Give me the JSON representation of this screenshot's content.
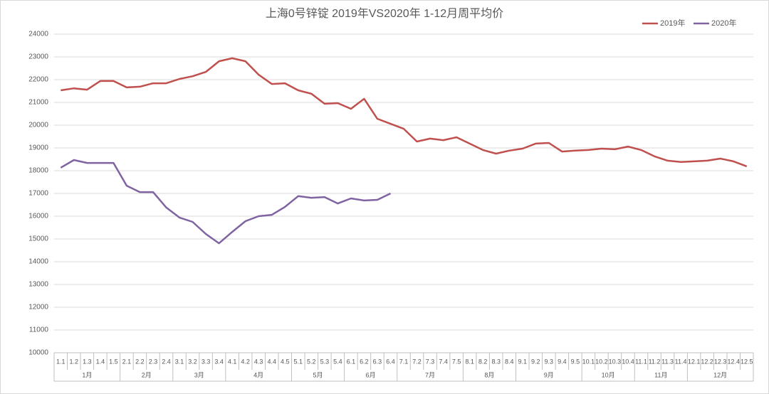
{
  "chart_data": {
    "type": "line",
    "title": "上海0号锌锭  2019年VS2020年  1-12月周平均价",
    "groups": [
      {
        "label": "1月",
        "categories": [
          "1.1",
          "1.2",
          "1.3",
          "1.4",
          "1.5"
        ]
      },
      {
        "label": "2月",
        "categories": [
          "2.1",
          "2.2",
          "2.3",
          "2.4"
        ]
      },
      {
        "label": "3月",
        "categories": [
          "3.1",
          "3.2",
          "3.3",
          "3.4"
        ]
      },
      {
        "label": "4月",
        "categories": [
          "4.1",
          "4.2",
          "4.3",
          "4.4",
          "4.5"
        ]
      },
      {
        "label": "5月",
        "categories": [
          "5.1",
          "5.2",
          "5.3",
          "5.4"
        ]
      },
      {
        "label": "6月",
        "categories": [
          "6.1",
          "6.2",
          "6.3",
          "6.4"
        ]
      },
      {
        "label": "7月",
        "categories": [
          "7.1",
          "7.2",
          "7.3",
          "7.4",
          "7.5"
        ]
      },
      {
        "label": "8月",
        "categories": [
          "8.1",
          "8.2",
          "8.3",
          "8.4"
        ]
      },
      {
        "label": "9月",
        "categories": [
          "9.1",
          "9.2",
          "9.3",
          "9.4",
          "9.5"
        ]
      },
      {
        "label": "10月",
        "categories": [
          "10.1",
          "10.2",
          "10.3",
          "10.4"
        ]
      },
      {
        "label": "11月",
        "categories": [
          "11.1",
          "11.2",
          "11.3",
          "11.4"
        ]
      },
      {
        "label": "12月",
        "categories": [
          "12.1",
          "12.2",
          "12.3",
          "12.4",
          "12.5"
        ]
      }
    ],
    "series": [
      {
        "name": "2019年",
        "color": "#c0504d",
        "values": [
          21530,
          21620,
          21560,
          21940,
          21940,
          21660,
          21690,
          21840,
          21840,
          22030,
          22150,
          22340,
          22810,
          22940,
          22810,
          22220,
          21810,
          21840,
          21530,
          21380,
          20940,
          20970,
          20720,
          21160,
          20280,
          20060,
          19840,
          19280,
          19410,
          19340,
          19470,
          19190,
          18910,
          18750,
          18880,
          18970,
          19190,
          19220,
          18840,
          18880,
          18910,
          18970,
          18940,
          19060,
          18910,
          18630,
          18440,
          18380,
          18410,
          18440,
          18530,
          18410,
          18190
        ]
      },
      {
        "name": "2020年",
        "color": "#8064a2",
        "values": [
          18130,
          18470,
          18340,
          18340,
          18340,
          17340,
          17060,
          17060,
          16380,
          15940,
          15750,
          15220,
          14810,
          15310,
          15780,
          16000,
          16060,
          16410,
          16880,
          16810,
          16840,
          16560,
          16780,
          16690,
          16720,
          17000,
          null,
          null,
          null,
          null,
          null,
          null,
          null,
          null,
          null,
          null,
          null,
          null,
          null,
          null,
          null,
          null,
          null,
          null,
          null,
          null,
          null,
          null,
          null,
          null,
          null,
          null,
          null
        ]
      }
    ],
    "ylim": [
      10000,
      24000
    ],
    "yticks": [
      10000,
      11000,
      12000,
      13000,
      14000,
      15000,
      16000,
      17000,
      18000,
      19000,
      20000,
      21000,
      22000,
      23000,
      24000
    ],
    "grid": true,
    "legend": "top-right"
  }
}
